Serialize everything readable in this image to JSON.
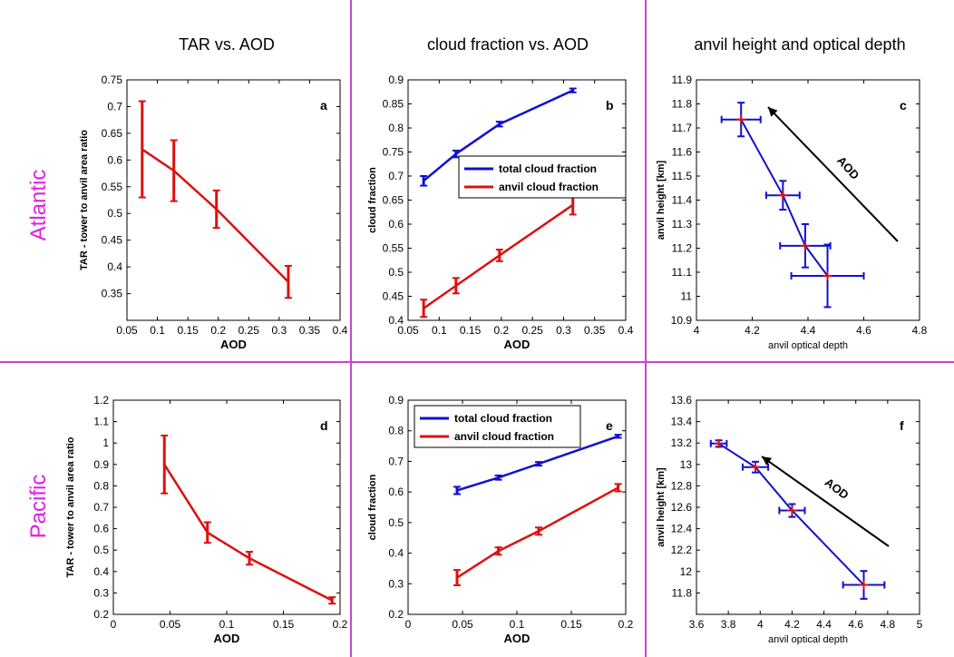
{
  "headers": {
    "col1": "TAR vs. AOD",
    "col2": "cloud fraction vs. AOD",
    "col3": "anvil height and optical depth"
  },
  "regions": {
    "top": "Atlantic",
    "bottom": "Pacific"
  },
  "colors": {
    "divider": "#cc44cc",
    "region": "#e020e0",
    "blue": "#1010d0",
    "red": "#dd1010",
    "black": "#000000"
  },
  "chart_data": [
    {
      "id": "a",
      "type": "line",
      "panel_label": "a",
      "xlabel": "AOD",
      "ylabel": "TAR - tower to anvil area ratio",
      "xlim": [
        0.05,
        0.4
      ],
      "ylim": [
        0.3,
        0.75
      ],
      "xticks": [
        "0.05",
        "0.1",
        "0.15",
        "0.2",
        "0.25",
        "0.3",
        "0.35",
        "0.4"
      ],
      "yticks": [
        "0.35",
        "0.4",
        "0.45",
        "0.5",
        "0.55",
        "0.6",
        "0.65",
        "0.7",
        "0.75"
      ],
      "series": [
        {
          "color": "#dd1010",
          "x": [
            0.075,
            0.127,
            0.197,
            0.315
          ],
          "y": [
            0.62,
            0.58,
            0.508,
            0.372
          ],
          "yerr": [
            0.09,
            0.057,
            0.035,
            0.03
          ]
        }
      ]
    },
    {
      "id": "b",
      "type": "line",
      "panel_label": "b",
      "xlabel": "AOD",
      "ylabel": "cloud fraction",
      "xlim": [
        0.05,
        0.4
      ],
      "ylim": [
        0.4,
        0.9
      ],
      "xticks": [
        "0.05",
        "0.1",
        "0.15",
        "0.2",
        "0.25",
        "0.3",
        "0.35",
        "0.4"
      ],
      "yticks": [
        "0.4",
        "0.45",
        "0.5",
        "0.55",
        "0.6",
        "0.65",
        "0.7",
        "0.75",
        "0.8",
        "0.85",
        "0.9"
      ],
      "legend": [
        "total cloud fraction",
        "anvil cloud fraction"
      ],
      "legend_position": "middle-right",
      "series": [
        {
          "name": "total cloud fraction",
          "color": "#1010d0",
          "x": [
            0.075,
            0.127,
            0.197,
            0.315
          ],
          "y": [
            0.69,
            0.746,
            0.808,
            0.878
          ],
          "yerr": [
            0.01,
            0.007,
            0.005,
            0.004
          ]
        },
        {
          "name": "anvil cloud fraction",
          "color": "#dd1010",
          "x": [
            0.075,
            0.127,
            0.197,
            0.315
          ],
          "y": [
            0.425,
            0.472,
            0.535,
            0.64
          ],
          "yerr": [
            0.018,
            0.016,
            0.012,
            0.02
          ]
        }
      ]
    },
    {
      "id": "c",
      "type": "line",
      "panel_label": "c",
      "xlabel": "anvil optical depth",
      "ylabel": "anvil height [km]",
      "xlim": [
        4,
        4.8
      ],
      "ylim": [
        10.9,
        11.9
      ],
      "xticks": [
        "4",
        "4.2",
        "4.4",
        "4.6",
        "4.8"
      ],
      "yticks": [
        "10.9",
        "11",
        "11.1",
        "11.2",
        "11.3",
        "11.4",
        "11.5",
        "11.6",
        "11.7",
        "11.8",
        "11.9"
      ],
      "annotation": "AOD",
      "series": [
        {
          "color": "#1010d0",
          "x": [
            4.16,
            4.31,
            4.39,
            4.47
          ],
          "y": [
            11.735,
            11.42,
            11.21,
            11.085
          ],
          "xerr": [
            0.07,
            0.06,
            0.09,
            0.13
          ],
          "yerr": [
            0.07,
            0.06,
            0.09,
            0.13
          ]
        }
      ]
    },
    {
      "id": "d",
      "type": "line",
      "panel_label": "d",
      "xlabel": "AOD",
      "ylabel": "TAR - tower to anvil area ratio",
      "xlim": [
        0,
        0.2
      ],
      "ylim": [
        0.2,
        1.2
      ],
      "xticks": [
        "0",
        "0.05",
        "0.1",
        "0.15",
        "0.2"
      ],
      "yticks": [
        "0.2",
        "0.3",
        "0.4",
        "0.5",
        "0.6",
        "0.7",
        "0.8",
        "0.9",
        "1",
        "1.1",
        "1.2"
      ],
      "series": [
        {
          "color": "#dd1010",
          "x": [
            0.045,
            0.083,
            0.12,
            0.193
          ],
          "y": [
            0.9,
            0.582,
            0.462,
            0.265
          ],
          "yerr": [
            0.135,
            0.048,
            0.03,
            0.015
          ]
        }
      ]
    },
    {
      "id": "e",
      "type": "line",
      "panel_label": "e",
      "xlabel": "AOD",
      "ylabel": "cloud fraction",
      "xlim": [
        0,
        0.2
      ],
      "ylim": [
        0.2,
        0.9
      ],
      "xticks": [
        "0",
        "0.05",
        "0.1",
        "0.15",
        "0.2"
      ],
      "yticks": [
        "0.2",
        "0.3",
        "0.4",
        "0.5",
        "0.6",
        "0.7",
        "0.8",
        "0.9"
      ],
      "legend": [
        "total cloud fraction",
        "anvil cloud fraction"
      ],
      "legend_position": "top-left",
      "series": [
        {
          "name": "total cloud fraction",
          "color": "#1010d0",
          "x": [
            0.045,
            0.083,
            0.12,
            0.193
          ],
          "y": [
            0.605,
            0.647,
            0.692,
            0.782
          ],
          "yerr": [
            0.012,
            0.007,
            0.006,
            0.005
          ]
        },
        {
          "name": "anvil cloud fraction",
          "color": "#dd1010",
          "x": [
            0.045,
            0.083,
            0.12,
            0.193
          ],
          "y": [
            0.32,
            0.407,
            0.472,
            0.614
          ],
          "yerr": [
            0.025,
            0.012,
            0.012,
            0.012
          ]
        }
      ]
    },
    {
      "id": "f",
      "type": "line",
      "panel_label": "f",
      "xlabel": "anvil optical depth",
      "ylabel": "anvil height [km]",
      "xlim": [
        3.6,
        5
      ],
      "ylim": [
        11.6,
        13.6
      ],
      "xticks": [
        "3.6",
        "3.8",
        "4",
        "4.2",
        "4.4",
        "4.6",
        "4.8",
        "5"
      ],
      "yticks": [
        "11.8",
        "12",
        "12.2",
        "12.4",
        "12.6",
        "12.8",
        "13",
        "13.2",
        "13.4",
        "13.6"
      ],
      "annotation": "AOD",
      "series": [
        {
          "color": "#1010d0",
          "x": [
            3.74,
            3.97,
            4.2,
            4.65
          ],
          "y": [
            13.195,
            12.975,
            12.57,
            11.875
          ],
          "xerr": [
            0.05,
            0.08,
            0.08,
            0.13
          ],
          "yerr": [
            0.03,
            0.05,
            0.06,
            0.13
          ]
        }
      ]
    }
  ]
}
